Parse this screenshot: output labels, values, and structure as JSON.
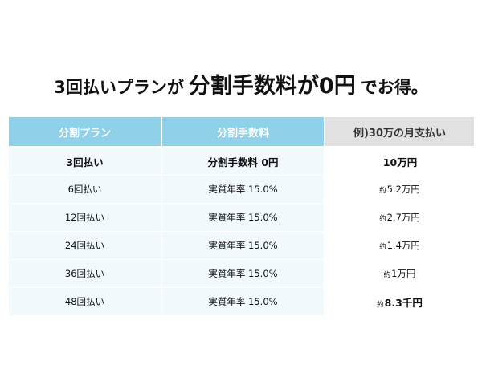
{
  "headline": {
    "part1": "3回払いプランが",
    "part2": "分割手数料が0円",
    "part3": "でお得。"
  },
  "table": {
    "headers": [
      "分割プラン",
      "分割手数料",
      "例)30万の月支払い"
    ],
    "rows": [
      {
        "plan": "3回払い",
        "fee": "分割手数料 0円",
        "prefix": "",
        "payment": "10万円"
      },
      {
        "plan": "6回払い",
        "fee": "実質年率 15.0%",
        "prefix": "約",
        "payment": "5.2万円"
      },
      {
        "plan": "12回払い",
        "fee": "実質年率 15.0%",
        "prefix": "約",
        "payment": "2.7万円"
      },
      {
        "plan": "24回払い",
        "fee": "実質年率 15.0%",
        "prefix": "約",
        "payment": "1.4万円"
      },
      {
        "plan": "36回払い",
        "fee": "実質年率 15.0%",
        "prefix": "約",
        "payment": "1万円"
      },
      {
        "plan": "48回払い",
        "fee": "実質年率 15.0%",
        "prefix": "約",
        "payment": "8.3千円"
      }
    ]
  },
  "colors": {
    "header_blue": "#8ed1e8",
    "header_gray": "#e1e1e1",
    "row_tint": "#f1f9fd"
  }
}
